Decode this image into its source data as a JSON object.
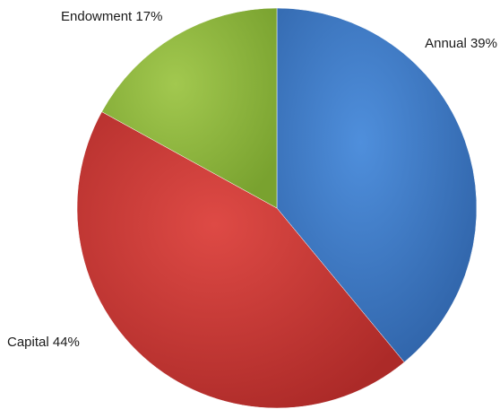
{
  "chart_data": {
    "type": "pie",
    "slices": [
      {
        "label": "Annual 39%",
        "category": "Annual",
        "value": 39,
        "color": "#3a76c4"
      },
      {
        "label": "Capital 44%",
        "category": "Capital",
        "value": 44,
        "color": "#cc3633"
      },
      {
        "label": "Endowment 17%",
        "category": "Endowment",
        "value": 17,
        "color": "#8fb63d"
      }
    ],
    "start_angle_deg": 0,
    "direction": "clockwise",
    "legend": "none"
  }
}
